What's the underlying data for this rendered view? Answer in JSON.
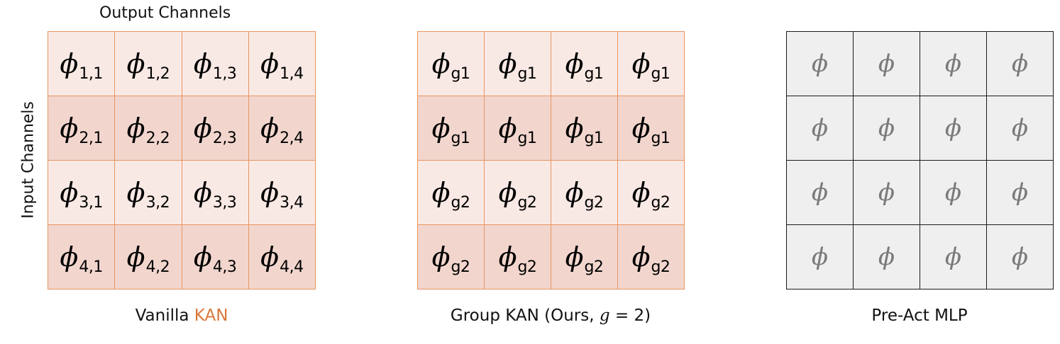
{
  "axis_labels": {
    "output": "Output Channels",
    "input": "Input Channels"
  },
  "panels": {
    "vanilla": {
      "caption_prefix": "Vanilla ",
      "caption_highlight": "KAN",
      "symbol": "ϕ",
      "subscripts": [
        [
          "1,1",
          "1,2",
          "1,3",
          "1,4"
        ],
        [
          "2,1",
          "2,2",
          "2,3",
          "2,4"
        ],
        [
          "3,1",
          "3,2",
          "3,3",
          "3,4"
        ],
        [
          "4,1",
          "4,2",
          "4,3",
          "4,4"
        ]
      ]
    },
    "group": {
      "caption_prefix": "Group KAN (Ours, ",
      "caption_var": "g",
      "caption_suffix": " = 2)",
      "symbol": "ϕ",
      "subscripts": [
        [
          "g1",
          "g1",
          "g1",
          "g1"
        ],
        [
          "g1",
          "g1",
          "g1",
          "g1"
        ],
        [
          "g2",
          "g2",
          "g2",
          "g2"
        ],
        [
          "g2",
          "g2",
          "g2",
          "g2"
        ]
      ]
    },
    "mlp": {
      "caption": "Pre-Act MLP",
      "symbol": "ϕ",
      "rows": 4,
      "cols": 4
    }
  },
  "colors": {
    "kan_border": "#e8945f",
    "kan_light": "#f9e9e5",
    "kan_dark": "#f2d6ce",
    "mlp_border": "#1a1a1a",
    "mlp_fill": "#efefef",
    "mlp_symbol": "#7a7a7a",
    "caption_highlight": "#d9773a"
  }
}
